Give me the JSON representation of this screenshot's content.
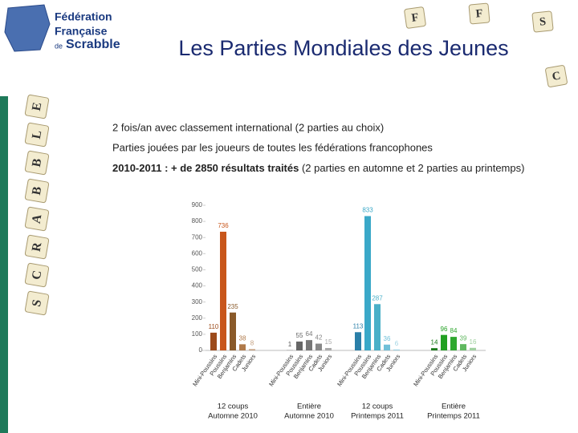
{
  "logo": {
    "line1": "Fédération",
    "line2": "Française",
    "line3a": "de",
    "line3b": "Scrabble"
  },
  "title": "Les Parties Mondiales des Jeunes",
  "top_tiles": [
    "F",
    "F",
    "S",
    "C"
  ],
  "side_tiles": [
    "E",
    "L",
    "B",
    "B",
    "A",
    "R",
    "C",
    "S"
  ],
  "bullets": [
    {
      "text": "2 fois/an avec classement international (2 parties au choix)"
    },
    {
      "text": "Parties jouées par les joueurs de toutes les fédérations francophones"
    },
    {
      "bold": "2010-2011 : + de 2850 résultats traités",
      "text": " (2 parties en automne et 2 parties au printemps)"
    }
  ],
  "chart_data": {
    "type": "grouped-bar",
    "ylim": [
      0,
      900
    ],
    "yticks": [
      0,
      100,
      200,
      300,
      400,
      500,
      600,
      700,
      800,
      900
    ],
    "groups": [
      {
        "name": [
          "12 coups",
          "Automne 2010"
        ],
        "categories": [
          "Mini-Poussins",
          "Poussins",
          "Benjamins",
          "Cadets",
          "Juniors"
        ],
        "values": [
          110,
          736,
          235,
          38,
          8
        ],
        "colors": [
          "#9c4a1a",
          "#c8561b",
          "#8a5a2a",
          "#b07a4a",
          "#c4a080"
        ]
      },
      {
        "name": [
          "Entière",
          "Automne 2010"
        ],
        "categories": [
          "Mini-Poussins",
          "Poussins",
          "Benjamins",
          "Cadets",
          "Juniors"
        ],
        "values": [
          1,
          55,
          64,
          42,
          15
        ],
        "colors": [
          "#555555",
          "#666666",
          "#777777",
          "#888888",
          "#aaaaaa"
        ]
      },
      {
        "name": [
          "12 coups",
          "Printemps 2011"
        ],
        "categories": [
          "Mini-Poussins",
          "Poussins",
          "Benjamins",
          "Cadets",
          "Juniors"
        ],
        "values": [
          113,
          833,
          287,
          36,
          6
        ],
        "colors": [
          "#2a7fa8",
          "#3aa8c8",
          "#4ab0c8",
          "#70c0d8",
          "#a0d4e4"
        ]
      },
      {
        "name": [
          "Entière",
          "Printemps 2011"
        ],
        "categories": [
          "Mini-Poussins",
          "Poussins",
          "Benjamins",
          "Cadets",
          "Juniors"
        ],
        "values": [
          14,
          96,
          84,
          39,
          16
        ],
        "colors": [
          "#1a7a1a",
          "#22a022",
          "#30a830",
          "#60b860",
          "#a0d0a0"
        ]
      }
    ]
  }
}
